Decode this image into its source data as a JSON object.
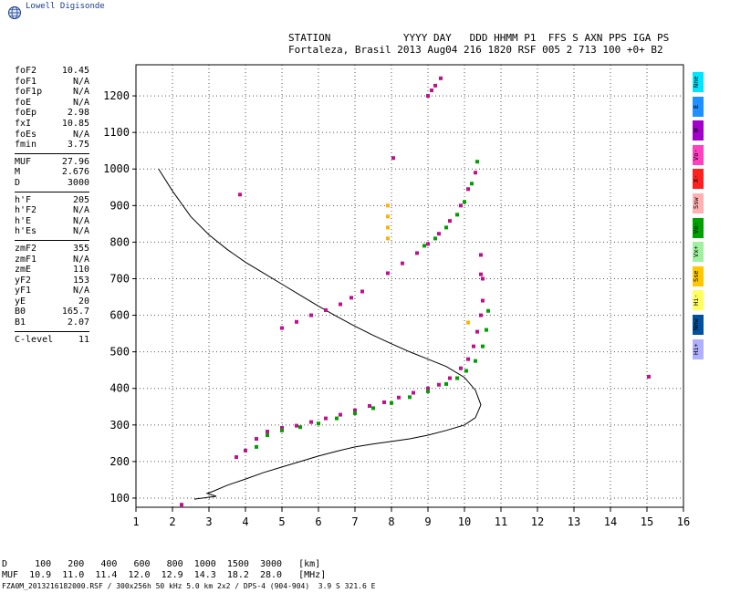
{
  "brand": {
    "name": "Lowell Digisonde"
  },
  "header": {
    "line1": "STATION            YYYY DAY   DDD HHMM P1  FFS S AXN PPS IGA PS",
    "line2": "Fortaleza, Brasil 2013 Aug04 216 1820 RSF 005 2 713 100 +0+ B2"
  },
  "params": [
    {
      "k": "foF2",
      "v": "10.45"
    },
    {
      "k": "foF1",
      "v": "N/A"
    },
    {
      "k": "foF1p",
      "v": "N/A"
    },
    {
      "k": "foE",
      "v": "N/A"
    },
    {
      "k": "foEp",
      "v": "2.98"
    },
    {
      "k": "fxI",
      "v": "10.85"
    },
    {
      "k": "foEs",
      "v": "N/A"
    },
    {
      "k": "fmin",
      "v": "3.75"
    },
    {
      "k": "MUF",
      "v": "27.96"
    },
    {
      "k": "M",
      "v": "2.676"
    },
    {
      "k": "D",
      "v": "3000"
    },
    {
      "k": "h'F",
      "v": "205"
    },
    {
      "k": "h'F2",
      "v": "N/A"
    },
    {
      "k": "h'E",
      "v": "N/A"
    },
    {
      "k": "h'Es",
      "v": "N/A"
    },
    {
      "k": "zmF2",
      "v": "355"
    },
    {
      "k": "zmF1",
      "v": "N/A"
    },
    {
      "k": "zmE",
      "v": "110"
    },
    {
      "k": "yF2",
      "v": "153"
    },
    {
      "k": "yF1",
      "v": "N/A"
    },
    {
      "k": "yE",
      "v": "20"
    },
    {
      "k": "B0",
      "v": "165.7"
    },
    {
      "k": "B1",
      "v": "2.07"
    },
    {
      "k": "C-level",
      "v": "11"
    }
  ],
  "legend": [
    {
      "label": "Nne",
      "color": "#00e5ff"
    },
    {
      "label": "E",
      "color": "#1e90ff"
    },
    {
      "label": "W",
      "color": "#a000c8"
    },
    {
      "label": "Vo-",
      "color": "#ff40c0"
    },
    {
      "label": "X-",
      "color": "#ff2020"
    },
    {
      "label": "Ssw",
      "color": "#ffb0b0"
    },
    {
      "label": "Vo-",
      "color": "#00a000"
    },
    {
      "label": "Vx+",
      "color": "#a0f0a0"
    },
    {
      "label": "Sse",
      "color": "#ffc800"
    },
    {
      "label": "Hi-",
      "color": "#ffff60"
    },
    {
      "label": "Nnw",
      "color": "#0050a0"
    },
    {
      "label": "Hi+",
      "color": "#b0b0ff"
    }
  ],
  "bottom": {
    "line1": "D     100   200   400   600   800  1000  1500  3000   [km]",
    "line2": "MUF  10.9  11.0  11.4  12.0  12.9  14.3  18.2  28.0   [MHz]"
  },
  "footer": {
    "text": "FZA0M_2013216182000.RSF / 300x256h 50 kHz 5.0 km 2x2 / DPS-4 (904-904)  3.9 S 321.6 E"
  },
  "chart_data": {
    "type": "scatter",
    "title": "",
    "xlabel": "",
    "ylabel": "",
    "xlim": [
      1,
      16
    ],
    "ylim": [
      75,
      1285
    ],
    "xticks": [
      1,
      2,
      3,
      4,
      5,
      6,
      7,
      8,
      9,
      10,
      11,
      12,
      13,
      14,
      15,
      16
    ],
    "yticks": [
      100,
      200,
      300,
      400,
      500,
      600,
      700,
      800,
      900,
      1000,
      1100,
      1200
    ],
    "grid": true,
    "series": [
      {
        "color": "#000000",
        "style": "line",
        "x": [
          1.62,
          2.0,
          2.5,
          3.0,
          3.5,
          4.0,
          4.5,
          5.0,
          5.5,
          6.0,
          6.5,
          7.0,
          7.5,
          8.0,
          8.5,
          9.0,
          9.5,
          10.0,
          10.3,
          10.45,
          10.3,
          10.0,
          9.5,
          9.0,
          8.5,
          8.0,
          7.5,
          7.0,
          6.5,
          6.0,
          5.5,
          5.0,
          4.5,
          4.0,
          3.5,
          3.1,
          2.95,
          3.2,
          2.6
        ],
        "y": [
          1000,
          940,
          870,
          820,
          780,
          745,
          715,
          685,
          655,
          625,
          597,
          570,
          545,
          522,
          500,
          480,
          460,
          430,
          395,
          355,
          320,
          300,
          285,
          272,
          262,
          255,
          248,
          240,
          228,
          215,
          200,
          185,
          170,
          152,
          135,
          118,
          113,
          105,
          97
        ]
      },
      {
        "color": "#c0108c",
        "style": "points",
        "x": [
          3.75,
          4.0,
          4.3,
          4.6,
          5.0,
          5.4,
          5.8,
          6.2,
          6.6,
          7.0,
          7.4,
          7.8,
          8.2,
          8.6,
          9.0,
          9.3,
          9.6,
          9.9,
          10.1,
          10.25,
          10.35,
          10.45,
          10.5,
          10.5
        ],
        "y": [
          212,
          230,
          262,
          282,
          292,
          298,
          308,
          318,
          328,
          340,
          352,
          362,
          375,
          388,
          400,
          410,
          428,
          455,
          480,
          515,
          555,
          600,
          640,
          700
        ]
      },
      {
        "color": "#00a000",
        "style": "points",
        "x": [
          4.3,
          4.6,
          5.0,
          5.5,
          6.0,
          6.5,
          7.0,
          7.5,
          8.0,
          8.5,
          9.0,
          9.5,
          9.8,
          10.05,
          10.3,
          10.5,
          10.6,
          10.65
        ],
        "y": [
          240,
          272,
          285,
          294,
          304,
          318,
          332,
          346,
          360,
          376,
          392,
          412,
          428,
          448,
          475,
          515,
          560,
          612
        ]
      },
      {
        "color": "#c0108c",
        "style": "points",
        "x": [
          5.0,
          5.4,
          5.8,
          6.2,
          6.6,
          6.9,
          7.2
        ],
        "y": [
          565,
          582,
          600,
          614,
          630,
          648,
          665
        ]
      },
      {
        "color": "#c0108c",
        "style": "points",
        "x": [
          7.9,
          8.3,
          8.7,
          9.0,
          9.3,
          9.6,
          9.9,
          10.1,
          10.3
        ],
        "y": [
          715,
          742,
          770,
          795,
          823,
          858,
          900,
          945,
          990
        ]
      },
      {
        "color": "#00a000",
        "style": "points",
        "x": [
          8.9,
          9.2,
          9.5,
          9.8,
          10.0,
          10.2,
          10.35
        ],
        "y": [
          790,
          810,
          840,
          875,
          910,
          960,
          1020
        ]
      },
      {
        "color": "#c0108c",
        "style": "points",
        "x": [
          9.0,
          9.1,
          9.2,
          9.35,
          3.85,
          8.05,
          15.05,
          2.25,
          10.45,
          10.45
        ],
        "y": [
          1200,
          1215,
          1228,
          1248,
          930,
          1030,
          432,
          82,
          765,
          712
        ]
      },
      {
        "color": "#ffb000",
        "style": "points",
        "x": [
          7.9,
          7.9,
          7.9,
          7.9,
          10.1
        ],
        "y": [
          810,
          840,
          870,
          900,
          580
        ]
      }
    ]
  }
}
